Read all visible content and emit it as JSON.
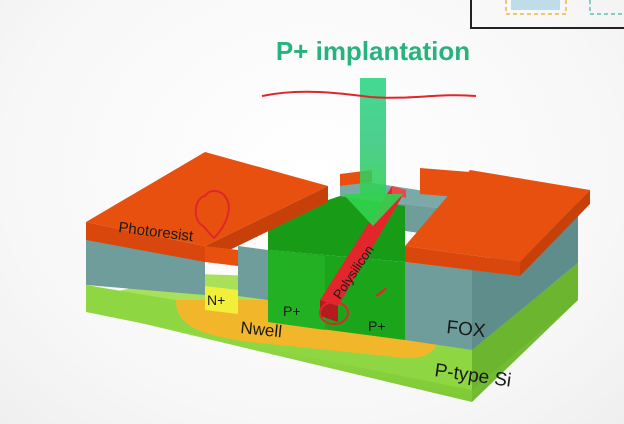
{
  "title": "P+ implantation",
  "labels": {
    "photoresist": "Photoresist",
    "n_plus": "N+",
    "p_plus_left": "P+",
    "p_plus_right": "P+",
    "nwell": "Nwell",
    "polysilicon": "Polysilicon",
    "fox": "FOX",
    "substrate": "P-type Si"
  },
  "colors": {
    "photoresist": "#e8500f",
    "fox": "#6f9d9b",
    "p_plus": "#1ba51b",
    "n_plus": "#f2ef3a",
    "nwell": "#f2b62a",
    "substrate": "#8bd43c",
    "polysilicon": "#e3262c",
    "implant_arrow": "#2fcf7a",
    "title": "#27b37d",
    "annotation_ink": "#e0262a"
  },
  "icons": {
    "implant_arrow": "down-arrow-icon",
    "corner_frame": "frame-corner-icon"
  }
}
